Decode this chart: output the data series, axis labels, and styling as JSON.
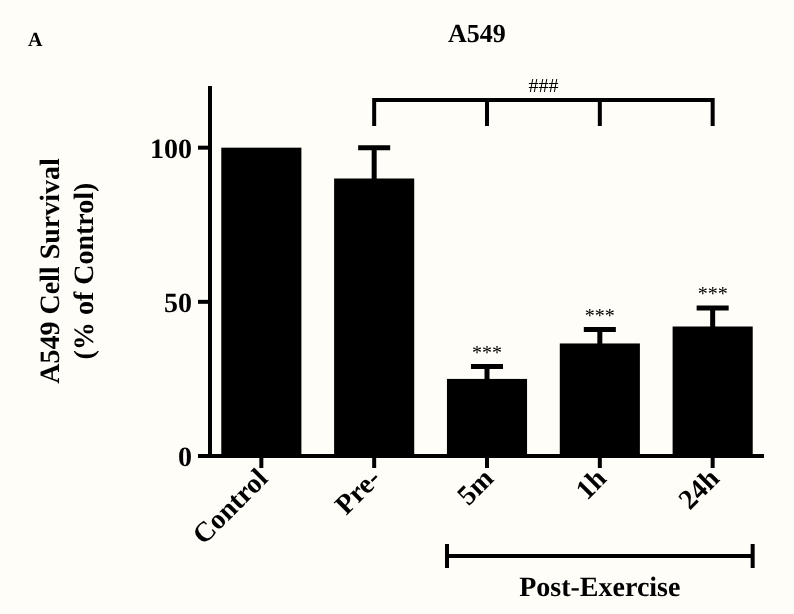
{
  "chart_data": {
    "type": "bar",
    "title": "A549",
    "ylabel": "A549 Cell  Survival\n(% of Control)",
    "categories": [
      "Control",
      "Pre-",
      "5m",
      "1h",
      "24h"
    ],
    "values": [
      100,
      90,
      25,
      36.5,
      42
    ],
    "errors": [
      null,
      10,
      4,
      4.5,
      6
    ],
    "color": "#000000",
    "ylim": [
      0,
      120
    ],
    "yticks": [
      0,
      50,
      100
    ],
    "grid": false,
    "annotations": [
      "A",
      "###",
      "Post-Exercise",
      {
        "text": "***",
        "x": "5m",
        "y": 29
      },
      {
        "text": "***",
        "x": "1h",
        "y": 41
      },
      {
        "text": "***",
        "x": "24h",
        "y": 48
      }
    ]
  }
}
